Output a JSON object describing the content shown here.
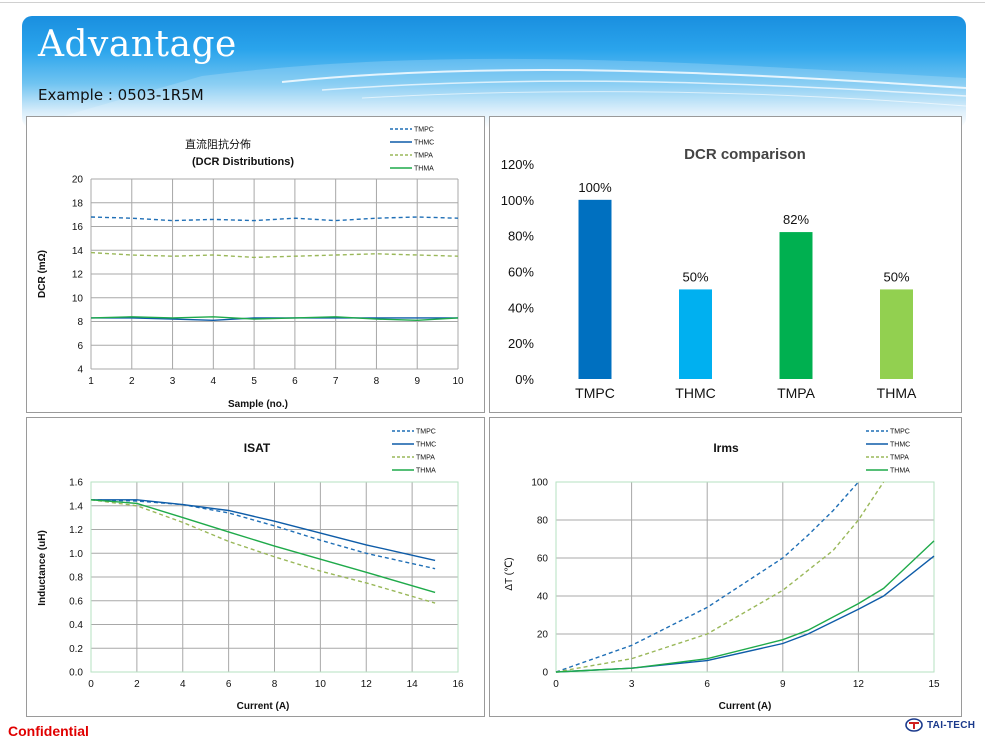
{
  "slide": {
    "title": "Advantage",
    "subtitle": "Example : 0503-1R5M",
    "footer_left": "Confidential",
    "logo_text": "TAI-TECH",
    "colors": {
      "banner": "#2aa4ec",
      "confidential": "#e00000",
      "logo": "#1b3a8c"
    }
  },
  "chart_data": [
    {
      "id": "dcr_distribution",
      "type": "line",
      "title": "直流阻抗分佈",
      "subtitle": "(DCR Distributions)",
      "xlabel": "Sample (no.)",
      "ylabel": "DCR (mΩ)",
      "xlim": [
        1,
        10
      ],
      "ylim": [
        4,
        20
      ],
      "xticks": [
        1,
        2,
        3,
        4,
        5,
        6,
        7,
        8,
        9,
        10
      ],
      "yticks": [
        4,
        6,
        8,
        10,
        12,
        14,
        16,
        18,
        20
      ],
      "grid": true,
      "legend": "top-right",
      "x": [
        1,
        2,
        3,
        4,
        5,
        6,
        7,
        8,
        9,
        10
      ],
      "series": [
        {
          "name": "TMPC",
          "color": "#1f6fb6",
          "dash": "dashed",
          "values": [
            16.8,
            16.7,
            16.5,
            16.6,
            16.5,
            16.7,
            16.5,
            16.7,
            16.8,
            16.7
          ]
        },
        {
          "name": "THMC",
          "color": "#0e5ca8",
          "dash": "solid",
          "values": [
            8.3,
            8.3,
            8.2,
            8.1,
            8.3,
            8.3,
            8.3,
            8.3,
            8.3,
            8.3
          ]
        },
        {
          "name": "TMPA",
          "color": "#9ab85a",
          "dash": "dashed",
          "values": [
            13.8,
            13.6,
            13.5,
            13.6,
            13.4,
            13.5,
            13.6,
            13.7,
            13.6,
            13.5
          ]
        },
        {
          "name": "THMA",
          "color": "#1faa4a",
          "dash": "solid",
          "values": [
            8.3,
            8.4,
            8.3,
            8.4,
            8.2,
            8.3,
            8.4,
            8.2,
            8.1,
            8.3
          ]
        }
      ]
    },
    {
      "id": "dcr_comparison",
      "type": "bar",
      "title": "DCR comparison",
      "categories": [
        "TMPC",
        "THMC",
        "TMPA",
        "THMA"
      ],
      "values": [
        100,
        50,
        82,
        50
      ],
      "value_labels": [
        "100%",
        "50%",
        "82%",
        "50%"
      ],
      "colors": [
        "#0070c0",
        "#00b0f0",
        "#00b050",
        "#92d050"
      ],
      "ylim": [
        0,
        120
      ],
      "yticks": [
        "0%",
        "20%",
        "40%",
        "60%",
        "80%",
        "100%",
        "120%"
      ],
      "grid": false
    },
    {
      "id": "isat",
      "type": "line",
      "title": "ISAT",
      "xlabel": "Current (A)",
      "ylabel": "Inductance (uH)",
      "xlim": [
        0,
        16
      ],
      "ylim": [
        0,
        1.6
      ],
      "xticks": [
        "0",
        "2",
        "4",
        "6",
        "8",
        "10",
        "12",
        "14",
        "16"
      ],
      "yticks": [
        "0.0",
        "0.2",
        "0.4",
        "0.6",
        "0.8",
        "1.0",
        "1.2",
        "1.4",
        "1.6"
      ],
      "grid": true,
      "legend": "top-right",
      "series": [
        {
          "name": "TMPC",
          "color": "#1f6fb6",
          "dash": "dashed",
          "x": [
            0,
            2,
            4,
            6,
            8,
            10,
            12,
            15
          ],
          "values": [
            1.45,
            1.44,
            1.41,
            1.34,
            1.23,
            1.11,
            1.0,
            0.87
          ]
        },
        {
          "name": "THMC",
          "color": "#0e5ca8",
          "dash": "solid",
          "x": [
            0,
            2,
            4,
            6,
            8,
            10,
            12,
            15
          ],
          "values": [
            1.45,
            1.45,
            1.41,
            1.36,
            1.27,
            1.17,
            1.07,
            0.94
          ]
        },
        {
          "name": "TMPA",
          "color": "#9ab85a",
          "dash": "dashed",
          "x": [
            0,
            2,
            4,
            6,
            8,
            10,
            12,
            15
          ],
          "values": [
            1.45,
            1.4,
            1.26,
            1.1,
            0.97,
            0.85,
            0.75,
            0.58
          ]
        },
        {
          "name": "THMA",
          "color": "#1faa4a",
          "dash": "solid",
          "x": [
            0,
            2,
            4,
            6,
            8,
            10,
            12,
            15
          ],
          "values": [
            1.45,
            1.42,
            1.3,
            1.18,
            1.06,
            0.95,
            0.84,
            0.67
          ]
        }
      ]
    },
    {
      "id": "irms",
      "type": "line",
      "title": "Irms",
      "xlabel": "Current (A)",
      "ylabel": "ΔT (℃)",
      "xlim": [
        0,
        15
      ],
      "ylim": [
        0,
        100
      ],
      "xticks": [
        "0",
        "3",
        "6",
        "9",
        "12",
        "15"
      ],
      "yticks": [
        "0",
        "20",
        "40",
        "60",
        "80",
        "100"
      ],
      "grid": true,
      "legend": "top-right",
      "series": [
        {
          "name": "TMPC",
          "color": "#1f6fb6",
          "dash": "dashed",
          "x": [
            0,
            3,
            6,
            9,
            10,
            11,
            12
          ],
          "values": [
            0,
            14,
            34,
            60,
            72,
            85,
            100
          ]
        },
        {
          "name": "THMC",
          "color": "#0e5ca8",
          "dash": "solid",
          "x": [
            0,
            3,
            6,
            9,
            10,
            12,
            13,
            15
          ],
          "values": [
            0,
            2,
            6,
            15,
            20,
            33,
            40,
            61
          ]
        },
        {
          "name": "TMPA",
          "color": "#9ab85a",
          "dash": "dashed",
          "x": [
            0,
            3,
            6,
            9,
            11,
            12,
            13
          ],
          "values": [
            0,
            7,
            20,
            43,
            64,
            80,
            100
          ]
        },
        {
          "name": "THMA",
          "color": "#1faa4a",
          "dash": "solid",
          "x": [
            0,
            3,
            6,
            9,
            10,
            12,
            13,
            15
          ],
          "values": [
            0,
            2,
            7,
            17,
            22,
            36,
            44,
            69
          ]
        }
      ]
    }
  ]
}
